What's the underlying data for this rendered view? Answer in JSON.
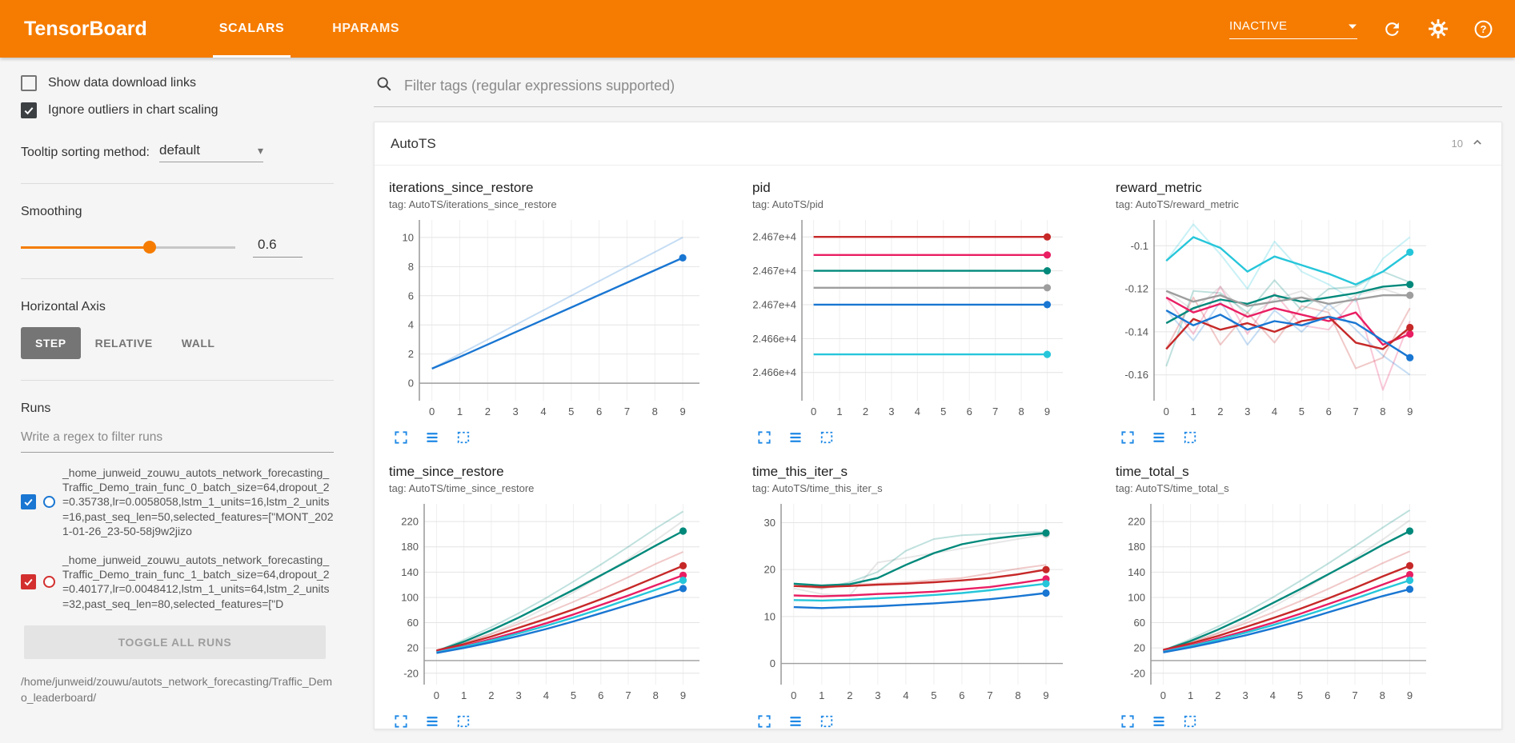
{
  "header": {
    "brand": "TensorBoard",
    "tabs": [
      {
        "label": "SCALARS",
        "active": true
      },
      {
        "label": "HPARAMS",
        "active": false
      }
    ],
    "status": "INACTIVE"
  },
  "sidebar": {
    "checkboxes": [
      {
        "label": "Show data download links",
        "checked": false
      },
      {
        "label": "Ignore outliers in chart scaling",
        "checked": true
      }
    ],
    "tooltip_sorting_label": "Tooltip sorting method:",
    "tooltip_sorting_value": "default",
    "smoothing_label": "Smoothing",
    "smoothing_value": "0.6",
    "horizontal_axis_label": "Horizontal Axis",
    "axis_options": [
      {
        "label": "STEP",
        "selected": true
      },
      {
        "label": "RELATIVE",
        "selected": false
      },
      {
        "label": "WALL",
        "selected": false
      }
    ],
    "runs_label": "Runs",
    "runs_filter_placeholder": "Write a regex to filter runs",
    "runs": [
      {
        "color": "#1976d2",
        "checked": true,
        "name": "_home_junweid_zouwu_autots_network_forecasting_Traffic_Demo_train_func_0_batch_size=64,dropout_2=0.35738,lr=0.0058058,lstm_1_units=16,lstm_2_units=16,past_seq_len=50,selected_features=[\"MONT_2021-01-26_23-50-58j9w2jizo"
      },
      {
        "color": "#d32f2f",
        "checked": true,
        "name": "_home_junweid_zouwu_autots_network_forecasting_Traffic_Demo_train_func_1_batch_size=64,dropout_2=0.40177,lr=0.0048412,lstm_1_units=64,lstm_2_units=32,past_seq_len=80,selected_features=[\"D"
      }
    ],
    "toggle_all_label": "TOGGLE ALL RUNS",
    "logdir": "/home/junweid/zouwu/autots_network_forecasting/Traffic_Demo_leaderboard/"
  },
  "main": {
    "filter_placeholder": "Filter tags (regular expressions supported)",
    "section_title": "AutoTS",
    "section_count": "10"
  },
  "chart_data": [
    {
      "type": "line",
      "title": "iterations_since_restore",
      "tag": "tag: AutoTS/iterations_since_restore",
      "x": [
        0,
        1,
        2,
        3,
        4,
        5,
        6,
        7,
        8,
        9
      ],
      "xlim": [
        -0.45,
        9.6
      ],
      "ylim": [
        -1.2,
        11.2
      ],
      "ml": 38,
      "yticks": [
        {
          "v": 0,
          "label": "0"
        },
        {
          "v": 2,
          "label": "2"
        },
        {
          "v": 4,
          "label": "4"
        },
        {
          "v": 6,
          "label": "6"
        },
        {
          "v": 8,
          "label": "8"
        },
        {
          "v": 10,
          "label": "10"
        }
      ],
      "series": [
        {
          "name": "raw",
          "color": "#1976d2",
          "faint": true,
          "values": [
            1,
            2,
            3,
            4,
            5,
            6,
            7,
            8,
            9,
            10
          ]
        },
        {
          "name": "smoothed",
          "color": "#1976d2",
          "values": [
            1,
            1.8,
            2.65,
            3.5,
            4.35,
            5.2,
            6.05,
            6.9,
            7.75,
            8.6
          ]
        }
      ]
    },
    {
      "type": "line",
      "title": "pid",
      "tag": "tag: AutoTS/pid",
      "x": [
        0,
        1,
        2,
        3,
        4,
        5,
        6,
        7,
        8,
        9
      ],
      "xlim": [
        -0.45,
        9.6
      ],
      "ylim": [
        24657.5,
        24673.5
      ],
      "ml": 62,
      "yticks": [
        {
          "v": 24660,
          "label": "2.466e+4"
        },
        {
          "v": 24663,
          "label": "2.466e+4"
        },
        {
          "v": 24666,
          "label": "2.467e+4"
        },
        {
          "v": 24669,
          "label": "2.467e+4"
        },
        {
          "v": 24672,
          "label": "2.467e+4"
        }
      ],
      "series": [
        {
          "name": "run-red",
          "color": "#c62828",
          "flat": 24672
        },
        {
          "name": "run-pink",
          "color": "#e91e63",
          "flat": 24670.4
        },
        {
          "name": "run-green",
          "color": "#00897b",
          "flat": 24669
        },
        {
          "name": "run-gray",
          "color": "#9e9e9e",
          "flat": 24667.5
        },
        {
          "name": "run-blue",
          "color": "#1976d2",
          "flat": 24666
        },
        {
          "name": "run-cyan",
          "color": "#26c6da",
          "flat": 24661.6
        }
      ]
    },
    {
      "type": "line",
      "title": "reward_metric",
      "tag": "tag: AutoTS/reward_metric",
      "x": [
        0,
        1,
        2,
        3,
        4,
        5,
        6,
        7,
        8,
        9
      ],
      "xlim": [
        -0.45,
        9.6
      ],
      "ylim": [
        -0.172,
        -0.088
      ],
      "ml": 48,
      "yticks": [
        {
          "v": -0.16,
          "label": "-0.16"
        },
        {
          "v": -0.14,
          "label": "-0.14"
        },
        {
          "v": -0.12,
          "label": "-0.12"
        },
        {
          "v": -0.1,
          "label": "-0.1"
        }
      ],
      "series": [
        {
          "name": "cyan-raw",
          "color": "#26c6da",
          "faint": true,
          "values": [
            -0.107,
            -0.09,
            -0.104,
            -0.12,
            -0.098,
            -0.112,
            -0.118,
            -0.126,
            -0.106,
            -0.096
          ]
        },
        {
          "name": "green-raw",
          "color": "#00897b",
          "faint": true,
          "values": [
            -0.156,
            -0.121,
            -0.122,
            -0.131,
            -0.116,
            -0.13,
            -0.12,
            -0.119,
            -0.112,
            -0.117
          ]
        },
        {
          "name": "red-raw",
          "color": "#c62828",
          "faint": true,
          "values": [
            -0.148,
            -0.124,
            -0.146,
            -0.131,
            -0.145,
            -0.128,
            -0.131,
            -0.157,
            -0.152,
            -0.129
          ]
        },
        {
          "name": "pink-raw",
          "color": "#e91e63",
          "faint": true,
          "values": [
            -0.124,
            -0.141,
            -0.119,
            -0.141,
            -0.122,
            -0.137,
            -0.139,
            -0.124,
            -0.167,
            -0.135
          ]
        },
        {
          "name": "blue-raw",
          "color": "#1976d2",
          "faint": true,
          "values": [
            -0.13,
            -0.144,
            -0.126,
            -0.146,
            -0.13,
            -0.14,
            -0.127,
            -0.139,
            -0.151,
            -0.16
          ]
        },
        {
          "name": "gray-raw",
          "color": "#9e9e9e",
          "faint": true,
          "values": [
            -0.121,
            -0.13,
            -0.119,
            -0.133,
            -0.125,
            -0.121,
            -0.13,
            -0.123,
            -0.12,
            -0.124
          ]
        },
        {
          "name": "cyan",
          "color": "#26c6da",
          "values": [
            -0.107,
            -0.096,
            -0.101,
            -0.112,
            -0.105,
            -0.109,
            -0.113,
            -0.118,
            -0.112,
            -0.103
          ]
        },
        {
          "name": "green",
          "color": "#00897b",
          "values": [
            -0.136,
            -0.129,
            -0.125,
            -0.127,
            -0.123,
            -0.126,
            -0.124,
            -0.122,
            -0.119,
            -0.118
          ]
        },
        {
          "name": "gray",
          "color": "#9e9e9e",
          "values": [
            -0.121,
            -0.126,
            -0.123,
            -0.128,
            -0.126,
            -0.124,
            -0.127,
            -0.125,
            -0.123,
            -0.123
          ]
        },
        {
          "name": "pink",
          "color": "#e91e63",
          "values": [
            -0.124,
            -0.131,
            -0.127,
            -0.133,
            -0.129,
            -0.132,
            -0.135,
            -0.131,
            -0.146,
            -0.141
          ]
        },
        {
          "name": "red",
          "color": "#c62828",
          "values": [
            -0.148,
            -0.134,
            -0.139,
            -0.136,
            -0.14,
            -0.135,
            -0.133,
            -0.145,
            -0.148,
            -0.138
          ]
        },
        {
          "name": "blue",
          "color": "#1976d2",
          "values": [
            -0.13,
            -0.137,
            -0.132,
            -0.139,
            -0.135,
            -0.137,
            -0.133,
            -0.136,
            -0.144,
            -0.152
          ]
        }
      ]
    },
    {
      "type": "line",
      "title": "time_since_restore",
      "tag": "tag: AutoTS/time_since_restore",
      "x": [
        0,
        1,
        2,
        3,
        4,
        5,
        6,
        7,
        8,
        9
      ],
      "xlim": [
        -0.45,
        9.6
      ],
      "ylim": [
        -38,
        248
      ],
      "ml": 44,
      "yticks": [
        {
          "v": -20,
          "label": "-20"
        },
        {
          "v": 20,
          "label": "20"
        },
        {
          "v": 60,
          "label": "60"
        },
        {
          "v": 100,
          "label": "100"
        },
        {
          "v": 140,
          "label": "140"
        },
        {
          "v": 180,
          "label": "180"
        },
        {
          "v": 220,
          "label": "220"
        }
      ],
      "series": [
        {
          "name": "green-raw",
          "color": "#00897b",
          "faint": true,
          "values": [
            15,
            33,
            53,
            75,
            99,
            125,
            152,
            180,
            209,
            236
          ]
        },
        {
          "name": "gray-raw",
          "color": "#9e9e9e",
          "faint": true,
          "values": [
            14,
            27,
            43,
            62,
            84,
            108,
            134,
            161,
            190,
            221
          ]
        },
        {
          "name": "red-raw",
          "color": "#c62828",
          "faint": true,
          "values": [
            16,
            28,
            42,
            58,
            75,
            93,
            112,
            132,
            153,
            172
          ]
        },
        {
          "name": "green",
          "color": "#00897b",
          "values": [
            15,
            30,
            48,
            68,
            90,
            112,
            135,
            158,
            182,
            205
          ]
        },
        {
          "name": "red",
          "color": "#c62828",
          "values": [
            16,
            26,
            38,
            52,
            66,
            81,
            97,
            114,
            132,
            150
          ]
        },
        {
          "name": "pink",
          "color": "#e91e63",
          "values": [
            14,
            23,
            34,
            46,
            59,
            73,
            88,
            103,
            119,
            135
          ]
        },
        {
          "name": "cyan",
          "color": "#26c6da",
          "values": [
            13,
            22,
            32,
            43,
            55,
            68,
            82,
            97,
            112,
            127
          ]
        },
        {
          "name": "blue",
          "color": "#1976d2",
          "values": [
            12,
            20,
            29,
            39,
            50,
            62,
            75,
            88,
            101,
            114
          ]
        }
      ]
    },
    {
      "type": "line",
      "title": "time_this_iter_s",
      "tag": "tag: AutoTS/time_this_iter_s",
      "x": [
        0,
        1,
        2,
        3,
        4,
        5,
        6,
        7,
        8,
        9
      ],
      "xlim": [
        -0.45,
        9.6
      ],
      "ylim": [
        -4.5,
        34
      ],
      "ml": 36,
      "yticks": [
        {
          "v": 0,
          "label": "0"
        },
        {
          "v": 10,
          "label": "10"
        },
        {
          "v": 20,
          "label": "20"
        },
        {
          "v": 30,
          "label": "30"
        }
      ],
      "series": [
        {
          "name": "gray-raw",
          "color": "#9e9e9e",
          "faint": true,
          "dot": true,
          "values": [
            16,
            14.8,
            14.5,
            21.5,
            22.5,
            23.5,
            24.5,
            25.5,
            26.5,
            27.5
          ]
        },
        {
          "name": "green-raw",
          "color": "#00897b",
          "faint": true,
          "values": [
            17,
            16,
            17.3,
            19.5,
            24,
            26.5,
            27.3,
            27.6,
            27.9,
            28
          ]
        },
        {
          "name": "red-raw",
          "color": "#c62828",
          "faint": true,
          "values": [
            16.5,
            16,
            16.8,
            17,
            17.3,
            17.8,
            18.2,
            19.2,
            20.2,
            21
          ]
        },
        {
          "name": "green",
          "color": "#00897b",
          "values": [
            17,
            16.6,
            16.9,
            18.2,
            21,
            23.5,
            25.4,
            26.5,
            27.2,
            27.8
          ]
        },
        {
          "name": "red",
          "color": "#c62828",
          "values": [
            16.5,
            16.3,
            16.5,
            16.8,
            17,
            17.3,
            17.7,
            18.2,
            19,
            20
          ]
        },
        {
          "name": "pink",
          "color": "#e91e63",
          "values": [
            14.5,
            14.3,
            14.5,
            14.8,
            15,
            15.3,
            15.8,
            16.3,
            17.1,
            18
          ]
        },
        {
          "name": "cyan",
          "color": "#26c6da",
          "values": [
            13.5,
            13.4,
            13.6,
            13.9,
            14.2,
            14.6,
            15,
            15.6,
            16.3,
            17
          ]
        },
        {
          "name": "blue",
          "color": "#1976d2",
          "values": [
            12,
            11.8,
            12,
            12.2,
            12.5,
            12.8,
            13.2,
            13.7,
            14.3,
            15
          ]
        }
      ]
    },
    {
      "type": "line",
      "title": "time_total_s",
      "tag": "tag: AutoTS/time_total_s",
      "x": [
        0,
        1,
        2,
        3,
        4,
        5,
        6,
        7,
        8,
        9
      ],
      "xlim": [
        -0.45,
        9.6
      ],
      "ylim": [
        -38,
        248
      ],
      "ml": 44,
      "yticks": [
        {
          "v": -20,
          "label": "-20"
        },
        {
          "v": 20,
          "label": "20"
        },
        {
          "v": 60,
          "label": "60"
        },
        {
          "v": 100,
          "label": "100"
        },
        {
          "v": 140,
          "label": "140"
        },
        {
          "v": 180,
          "label": "180"
        },
        {
          "v": 220,
          "label": "220"
        }
      ],
      "series": [
        {
          "name": "green-raw",
          "color": "#00897b",
          "faint": true,
          "values": [
            16,
            34,
            54,
            76,
            100,
            126,
            153,
            181,
            210,
            238
          ]
        },
        {
          "name": "gray-raw",
          "color": "#9e9e9e",
          "faint": true,
          "values": [
            15,
            28,
            44,
            63,
            85,
            109,
            135,
            162,
            191,
            222
          ]
        },
        {
          "name": "red-raw",
          "color": "#c62828",
          "faint": true,
          "values": [
            17,
            29,
            43,
            59,
            76,
            94,
            113,
            133,
            154,
            173
          ]
        },
        {
          "name": "green",
          "color": "#00897b",
          "values": [
            16,
            31,
            49,
            69,
            91,
            113,
            136,
            159,
            183,
            205
          ]
        },
        {
          "name": "red",
          "color": "#c62828",
          "values": [
            17,
            27,
            39,
            53,
            67,
            82,
            98,
            115,
            133,
            150
          ]
        },
        {
          "name": "pink",
          "color": "#e91e63",
          "values": [
            15,
            24,
            35,
            47,
            60,
            74,
            89,
            104,
            120,
            136
          ]
        },
        {
          "name": "cyan",
          "color": "#26c6da",
          "values": [
            14,
            23,
            33,
            44,
            56,
            69,
            83,
            98,
            113,
            127
          ]
        },
        {
          "name": "blue",
          "color": "#1976d2",
          "values": [
            13,
            21,
            30,
            40,
            51,
            63,
            76,
            89,
            102,
            113
          ]
        }
      ]
    }
  ]
}
